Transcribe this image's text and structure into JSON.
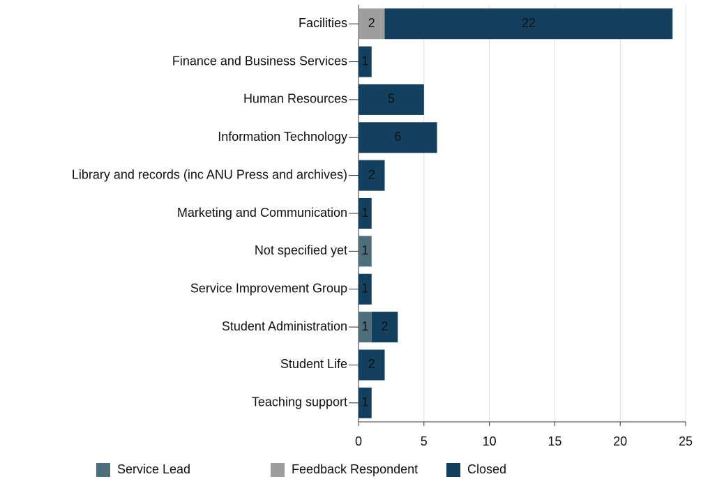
{
  "chart_data": {
    "type": "stacked_barh",
    "categories": [
      "Facilities",
      "Finance and Business Services",
      "Human Resources",
      "Information Technology",
      "Library and records (inc ANU Press and archives)",
      "Marketing and Communication",
      "Not specified yet",
      "Service Improvement Group",
      "Student Administration",
      "Student Life",
      "Teaching support"
    ],
    "series": [
      {
        "name": "Service Lead",
        "color": "#4f6e7c",
        "values": [
          null,
          null,
          null,
          null,
          null,
          null,
          1,
          null,
          1,
          null,
          null
        ]
      },
      {
        "name": "Feedback Respondent",
        "color": "#9e9e9e",
        "values": [
          2,
          null,
          null,
          null,
          null,
          null,
          null,
          null,
          null,
          null,
          null
        ]
      },
      {
        "name": "Closed",
        "color": "#12405e",
        "values": [
          22,
          1,
          5,
          6,
          2,
          1,
          null,
          1,
          2,
          2,
          1
        ]
      }
    ],
    "xlim": [
      0,
      25
    ],
    "xticks": [
      0,
      5,
      10,
      15,
      20,
      25
    ],
    "grid": true,
    "legend": "bottom"
  }
}
